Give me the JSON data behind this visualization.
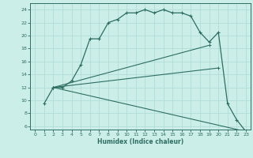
{
  "xlabel": "Humidex (Indice chaleur)",
  "bg_color": "#cceee8",
  "line_color": "#2d6e63",
  "grid_color": "#b0ddd8",
  "xlim": [
    -0.5,
    23.5
  ],
  "ylim": [
    5.5,
    25.0
  ],
  "yticks": [
    6,
    8,
    10,
    12,
    14,
    16,
    18,
    20,
    22,
    24
  ],
  "xticks": [
    0,
    1,
    2,
    3,
    4,
    5,
    6,
    7,
    8,
    9,
    10,
    11,
    12,
    13,
    14,
    15,
    16,
    17,
    18,
    19,
    20,
    21,
    22,
    23
  ],
  "curve1_x": [
    1,
    2,
    3,
    4,
    5,
    6,
    7,
    8,
    9,
    10,
    11,
    12,
    13,
    14,
    15,
    16,
    17,
    18,
    19,
    20,
    21,
    22,
    23
  ],
  "curve1_y": [
    9.5,
    12,
    12,
    13,
    15.5,
    19.5,
    19.5,
    22,
    22.5,
    23.5,
    23.5,
    24,
    23.5,
    24,
    23.5,
    23.5,
    23,
    20.5,
    19.0,
    20.5,
    9.5,
    7.0,
    5.2
  ],
  "curve2_x": [
    2,
    19
  ],
  "curve2_y": [
    12,
    18.5
  ],
  "curve3_x": [
    2,
    20
  ],
  "curve3_y": [
    12,
    15.0
  ],
  "curve4_x": [
    2,
    23
  ],
  "curve4_y": [
    12,
    5.2
  ]
}
